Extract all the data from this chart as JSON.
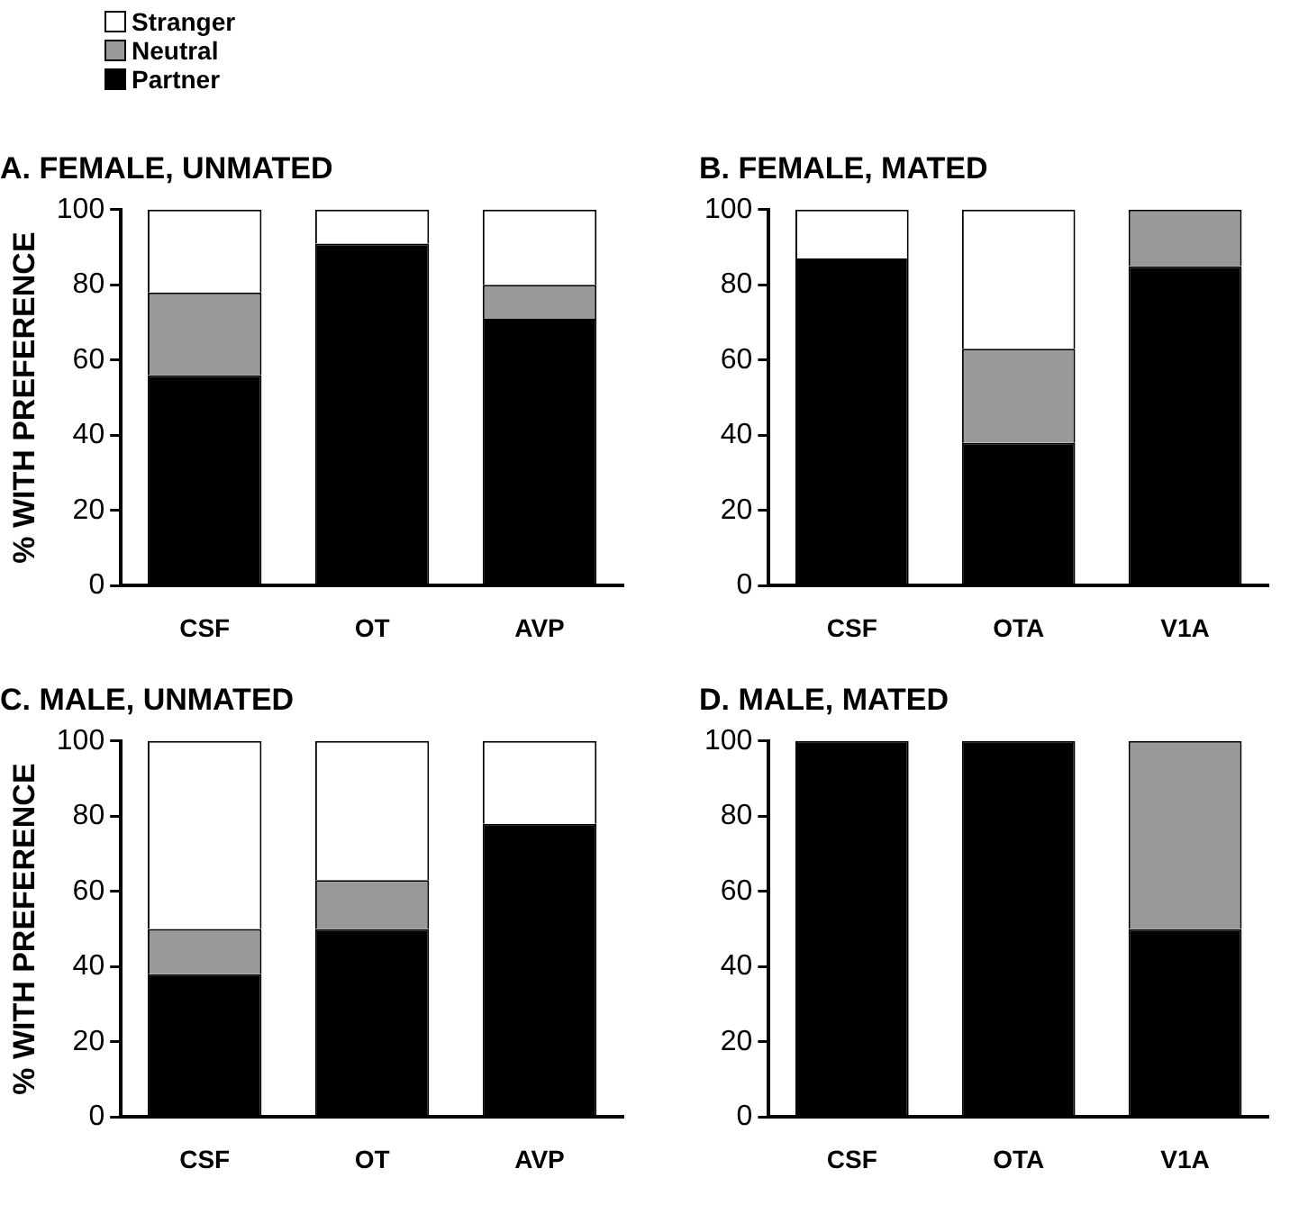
{
  "chart_data": [
    {
      "type": "bar",
      "stacked": true,
      "title": "A. FEMALE, UNMATED",
      "ylabel": "% WITH PREFERENCE",
      "categories": [
        "CSF",
        "OT",
        "AVP"
      ],
      "ylim": [
        0,
        100
      ],
      "yticks": [
        0,
        20,
        40,
        60,
        80,
        100
      ],
      "grid": false,
      "legend": "top left",
      "series": [
        {
          "name": "Partner",
          "color": "#000000",
          "values": [
            56,
            91,
            71
          ]
        },
        {
          "name": "Neutral",
          "color": "#999999",
          "values": [
            22,
            0,
            9
          ]
        },
        {
          "name": "Stranger",
          "color": "#ffffff",
          "values": [
            22,
            9,
            20
          ]
        }
      ]
    },
    {
      "type": "bar",
      "stacked": true,
      "title": "B. FEMALE, MATED",
      "categories": [
        "CSF",
        "OTA",
        "V1A"
      ],
      "ylim": [
        0,
        100
      ],
      "yticks": [
        0,
        20,
        40,
        60,
        80,
        100
      ],
      "grid": false,
      "series": [
        {
          "color": "#000000",
          "values": [
            87,
            38,
            85
          ]
        },
        {
          "color": "#999999",
          "values": [
            0,
            25,
            15
          ]
        },
        {
          "color": "#ffffff",
          "values": [
            13,
            37,
            0
          ]
        }
      ]
    },
    {
      "type": "bar",
      "stacked": true,
      "title": "C. MALE, UNMATED",
      "ylabel": "% WITH PREFERENCE",
      "categories": [
        "CSF",
        "OT",
        "AVP"
      ],
      "ylim": [
        0,
        100
      ],
      "yticks": [
        0,
        20,
        40,
        60,
        80,
        100
      ],
      "grid": false,
      "series": [
        {
          "color": "#000000",
          "values": [
            38,
            50,
            78
          ]
        },
        {
          "color": "#999999",
          "values": [
            12,
            13,
            0
          ]
        },
        {
          "color": "#ffffff",
          "values": [
            50,
            37,
            22
          ]
        }
      ]
    },
    {
      "type": "bar",
      "stacked": true,
      "title": "D. MALE, MATED",
      "categories": [
        "CSF",
        "OTA",
        "V1A"
      ],
      "ylim": [
        0,
        100
      ],
      "yticks": [
        0,
        20,
        40,
        60,
        80,
        100
      ],
      "grid": false,
      "series": [
        {
          "color": "#000000",
          "values": [
            100,
            100,
            50
          ]
        },
        {
          "color": "#999999",
          "values": [
            0,
            0,
            50
          ]
        },
        {
          "color": "#ffffff",
          "values": [
            0,
            0,
            0
          ]
        }
      ]
    }
  ]
}
